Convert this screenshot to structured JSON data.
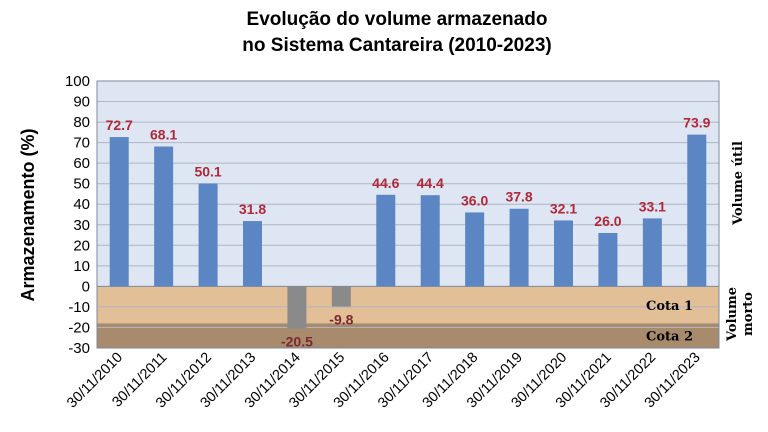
{
  "chart_data": {
    "type": "bar",
    "title_lines": [
      "Evolução do volume armazenado",
      "no Sistema Cantareira (2010-2023)"
    ],
    "ylabel": "Armazenamento (%)",
    "ylim": [
      -30,
      100
    ],
    "yticks": [
      100,
      90,
      80,
      70,
      60,
      50,
      40,
      30,
      20,
      10,
      0,
      -10,
      -20,
      -30
    ],
    "categories": [
      "30/11/2010",
      "30/11/2011",
      "30/11/2012",
      "30/11/2013",
      "30/11/2014",
      "30/11/2015",
      "30/11/2016",
      "30/11/2017",
      "30/11/2018",
      "30/11/2019",
      "30/11/2020",
      "30/11/2021",
      "30/11/2022",
      "30/11/2023"
    ],
    "values": [
      72.7,
      68.1,
      50.1,
      31.8,
      -20.5,
      -9.8,
      44.6,
      44.4,
      36.0,
      37.8,
      32.1,
      26.0,
      33.1,
      73.9
    ],
    "value_labels": [
      "72.7",
      "68.1",
      "50.1",
      "31.8",
      "-20.5",
      "-9.8",
      "44.6",
      "44.4",
      "36.0",
      "37.8",
      "32.1",
      "26.0",
      "33.1",
      "73.9"
    ],
    "zones": {
      "volume_util_label": "Volume útil",
      "volume_morto_label_lines": [
        "Volume",
        "morto"
      ],
      "cota1": {
        "label": "Cota 1",
        "range": [
          -18,
          0
        ]
      },
      "cota2": {
        "label": "Cota 2",
        "range": [
          -30,
          -18
        ]
      }
    },
    "grid": true,
    "colors": {
      "bar_positive": "#5b86c3",
      "bar_negative": "#8a8a8a",
      "plot_background": "#dde6f2",
      "cota1_fill": "#e3bf98",
      "cota2_fill": "#a88a6c",
      "gridline": "#aeb6c2"
    }
  }
}
